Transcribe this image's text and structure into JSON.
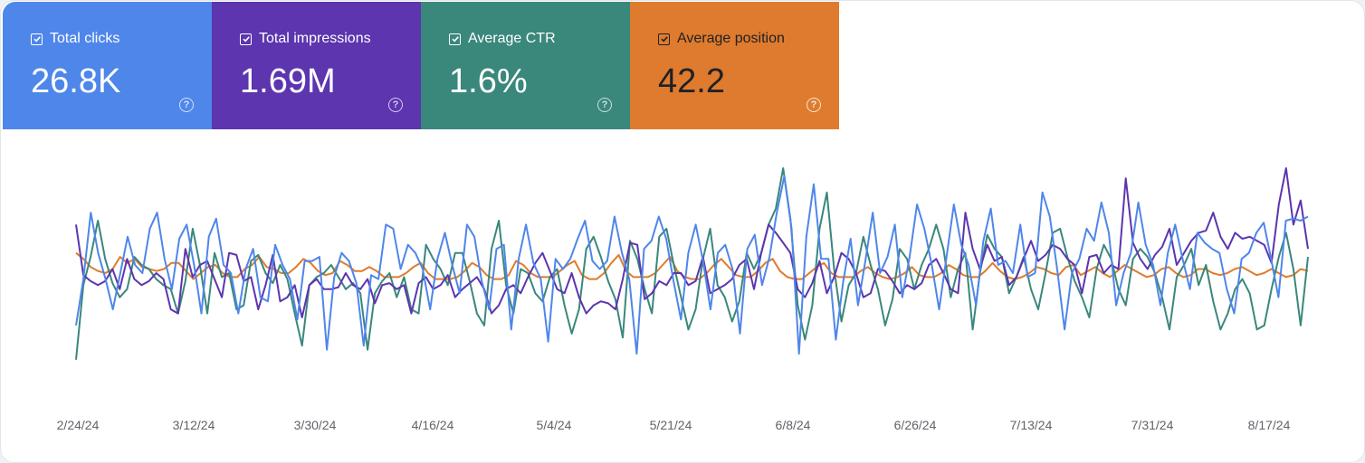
{
  "metrics": [
    {
      "label": "Total clicks",
      "value": "26.8K",
      "color": "#4f86ea",
      "checked": true
    },
    {
      "label": "Total impressions",
      "value": "1.69M",
      "color": "#5c35af",
      "checked": true
    },
    {
      "label": "Average CTR",
      "value": "1.6%",
      "color": "#3a877c",
      "checked": true
    },
    {
      "label": "Average position",
      "value": "42.2",
      "color": "#df7b2e",
      "checked": true
    }
  ],
  "chart_data": {
    "type": "line",
    "x_tick_labels": [
      "2/24/24",
      "3/12/24",
      "3/30/24",
      "4/16/24",
      "5/4/24",
      "5/21/24",
      "6/8/24",
      "6/26/24",
      "7/13/24",
      "7/31/24",
      "8/17/24"
    ],
    "x_range": [
      "2/24/24",
      "8/22/24"
    ],
    "y_axis_shown": false,
    "grid": false,
    "series": [
      {
        "name": "Total clicks",
        "color": "#4f86ea",
        "values": [
          0.22,
          0.45,
          0.78,
          0.58,
          0.45,
          0.3,
          0.48,
          0.66,
          0.52,
          0.48,
          0.7,
          0.78,
          0.55,
          0.4,
          0.65,
          0.72,
          0.52,
          0.28,
          0.66,
          0.75,
          0.52,
          0.48,
          0.28,
          0.5,
          0.6,
          0.36,
          0.34,
          0.62,
          0.52,
          0.45,
          0.25,
          0.54,
          0.54,
          0.56,
          0.1,
          0.46,
          0.58,
          0.54,
          0.43,
          0.12,
          0.47,
          0.45,
          0.72,
          0.7,
          0.5,
          0.62,
          0.58,
          0.5,
          0.3,
          0.55,
          0.68,
          0.52,
          0.38,
          0.72,
          0.66,
          0.44,
          0.3,
          0.6,
          0.62,
          0.2,
          0.55,
          0.72,
          0.53,
          0.45,
          0.14,
          0.55,
          0.5,
          0.55,
          0.65,
          0.74,
          0.54,
          0.5,
          0.54,
          0.76,
          0.58,
          0.45,
          0.08,
          0.6,
          0.64,
          0.76,
          0.65,
          0.44,
          0.25,
          0.58,
          0.72,
          0.54,
          0.3,
          0.58,
          0.62,
          0.5,
          0.18,
          0.6,
          0.67,
          0.42,
          0.56,
          0.78,
          0.96,
          0.7,
          0.08,
          0.66,
          0.92,
          0.55,
          0.55,
          0.15,
          0.44,
          0.65,
          0.32,
          0.54,
          0.78,
          0.48,
          0.56,
          0.72,
          0.36,
          0.56,
          0.82,
          0.7,
          0.52,
          0.3,
          0.56,
          0.82,
          0.62,
          0.52,
          0.32,
          0.64,
          0.8,
          0.52,
          0.54,
          0.48,
          0.72,
          0.46,
          0.48,
          0.88,
          0.76,
          0.5,
          0.2,
          0.48,
          0.55,
          0.7,
          0.64,
          0.83,
          0.68,
          0.32,
          0.48,
          0.58,
          0.83,
          0.62,
          0.52,
          0.32,
          0.58,
          0.72,
          0.55,
          0.4,
          0.68,
          0.63,
          0.6,
          0.58,
          0.4,
          0.28,
          0.55,
          0.58,
          0.68,
          0.73,
          0.55,
          0.36,
          0.74,
          0.75,
          0.74,
          0.76
        ]
      },
      {
        "name": "Total impressions",
        "color": "#5c35af",
        "values": [
          0.72,
          0.47,
          0.44,
          0.42,
          0.44,
          0.5,
          0.4,
          0.55,
          0.45,
          0.42,
          0.44,
          0.48,
          0.45,
          0.3,
          0.28,
          0.6,
          0.46,
          0.52,
          0.54,
          0.45,
          0.36,
          0.58,
          0.57,
          0.44,
          0.46,
          0.3,
          0.42,
          0.57,
          0.34,
          0.36,
          0.42,
          0.26,
          0.42,
          0.45,
          0.4,
          0.4,
          0.41,
          0.48,
          0.42,
          0.4,
          0.45,
          0.33,
          0.42,
          0.43,
          0.4,
          0.42,
          0.28,
          0.43,
          0.46,
          0.4,
          0.42,
          0.47,
          0.36,
          0.4,
          0.43,
          0.46,
          0.4,
          0.28,
          0.32,
          0.4,
          0.42,
          0.38,
          0.46,
          0.53,
          0.58,
          0.49,
          0.4,
          0.38,
          0.48,
          0.36,
          0.28,
          0.32,
          0.34,
          0.33,
          0.3,
          0.45,
          0.63,
          0.62,
          0.35,
          0.38,
          0.44,
          0.42,
          0.48,
          0.48,
          0.42,
          0.44,
          0.56,
          0.38,
          0.4,
          0.42,
          0.45,
          0.52,
          0.55,
          0.4,
          0.58,
          0.72,
          0.68,
          0.63,
          0.58,
          0.4,
          0.36,
          0.43,
          0.54,
          0.38,
          0.46,
          0.58,
          0.55,
          0.48,
          0.36,
          0.38,
          0.5,
          0.49,
          0.44,
          0.38,
          0.42,
          0.4,
          0.43,
          0.52,
          0.55,
          0.48,
          0.4,
          0.38,
          0.78,
          0.6,
          0.5,
          0.62,
          0.54,
          0.56,
          0.42,
          0.46,
          0.55,
          0.64,
          0.54,
          0.57,
          0.62,
          0.6,
          0.55,
          0.52,
          0.38,
          0.56,
          0.57,
          0.48,
          0.52,
          0.5,
          0.95,
          0.63,
          0.55,
          0.5,
          0.57,
          0.61,
          0.7,
          0.52,
          0.58,
          0.64,
          0.68,
          0.69,
          0.78,
          0.66,
          0.6,
          0.68,
          0.65,
          0.66,
          0.64,
          0.62,
          0.53,
          0.82,
          1.0,
          0.72,
          0.84,
          0.6
        ]
      },
      {
        "name": "Average CTR",
        "color": "#3a877c",
        "values": [
          0.05,
          0.42,
          0.56,
          0.74,
          0.55,
          0.43,
          0.36,
          0.4,
          0.56,
          0.52,
          0.5,
          0.45,
          0.42,
          0.4,
          0.28,
          0.44,
          0.7,
          0.52,
          0.28,
          0.58,
          0.46,
          0.48,
          0.3,
          0.32,
          0.54,
          0.57,
          0.48,
          0.43,
          0.52,
          0.45,
          0.28,
          0.12,
          0.42,
          0.46,
          0.48,
          0.52,
          0.46,
          0.4,
          0.43,
          0.38,
          0.1,
          0.38,
          0.44,
          0.48,
          0.36,
          0.46,
          0.3,
          0.28,
          0.62,
          0.55,
          0.5,
          0.42,
          0.58,
          0.58,
          0.44,
          0.28,
          0.22,
          0.6,
          0.74,
          0.42,
          0.28,
          0.5,
          0.48,
          0.38,
          0.34,
          0.46,
          0.5,
          0.32,
          0.18,
          0.3,
          0.6,
          0.66,
          0.56,
          0.44,
          0.35,
          0.16,
          0.64,
          0.55,
          0.4,
          0.28,
          0.66,
          0.7,
          0.52,
          0.36,
          0.2,
          0.3,
          0.55,
          0.7,
          0.42,
          0.36,
          0.24,
          0.34,
          0.58,
          0.5,
          0.58,
          0.72,
          0.8,
          1.0,
          0.75,
          0.32,
          0.15,
          0.32,
          0.7,
          0.88,
          0.5,
          0.24,
          0.42,
          0.48,
          0.66,
          0.52,
          0.4,
          0.22,
          0.35,
          0.6,
          0.55,
          0.4,
          0.52,
          0.6,
          0.72,
          0.6,
          0.36,
          0.5,
          0.58,
          0.2,
          0.48,
          0.67,
          0.6,
          0.56,
          0.38,
          0.46,
          0.56,
          0.4,
          0.3,
          0.48,
          0.68,
          0.7,
          0.56,
          0.44,
          0.36,
          0.26,
          0.5,
          0.62,
          0.55,
          0.4,
          0.32,
          0.55,
          0.6,
          0.56,
          0.48,
          0.36,
          0.2,
          0.46,
          0.52,
          0.6,
          0.42,
          0.52,
          0.34,
          0.2,
          0.28,
          0.4,
          0.45,
          0.38,
          0.2,
          0.22,
          0.4,
          0.56,
          0.68,
          0.5,
          0.22,
          0.56
        ]
      },
      {
        "name": "Average position",
        "color": "#df7b2e",
        "values": [
          0.58,
          0.55,
          0.51,
          0.49,
          0.48,
          0.5,
          0.56,
          0.53,
          0.55,
          0.51,
          0.5,
          0.49,
          0.5,
          0.53,
          0.53,
          0.49,
          0.45,
          0.48,
          0.51,
          0.52,
          0.48,
          0.46,
          0.46,
          0.5,
          0.52,
          0.56,
          0.51,
          0.5,
          0.48,
          0.48,
          0.51,
          0.55,
          0.53,
          0.49,
          0.47,
          0.48,
          0.54,
          0.52,
          0.49,
          0.49,
          0.51,
          0.49,
          0.46,
          0.46,
          0.46,
          0.48,
          0.51,
          0.53,
          0.48,
          0.45,
          0.45,
          0.45,
          0.46,
          0.49,
          0.53,
          0.51,
          0.47,
          0.45,
          0.45,
          0.47,
          0.54,
          0.52,
          0.48,
          0.46,
          0.46,
          0.46,
          0.49,
          0.52,
          0.54,
          0.47,
          0.45,
          0.45,
          0.48,
          0.53,
          0.57,
          0.49,
          0.46,
          0.46,
          0.46,
          0.48,
          0.52,
          0.56,
          0.49,
          0.46,
          0.45,
          0.45,
          0.48,
          0.52,
          0.55,
          0.51,
          0.47,
          0.46,
          0.46,
          0.49,
          0.53,
          0.55,
          0.49,
          0.46,
          0.45,
          0.45,
          0.48,
          0.51,
          0.53,
          0.48,
          0.46,
          0.46,
          0.46,
          0.49,
          0.51,
          0.48,
          0.46,
          0.45,
          0.46,
          0.48,
          0.51,
          0.47,
          0.46,
          0.46,
          0.48,
          0.52,
          0.5,
          0.47,
          0.46,
          0.46,
          0.49,
          0.53,
          0.49,
          0.46,
          0.45,
          0.46,
          0.48,
          0.51,
          0.5,
          0.48,
          0.47,
          0.51,
          0.52,
          0.47,
          0.49,
          0.51,
          0.48,
          0.46,
          0.49,
          0.52,
          0.5,
          0.48,
          0.46,
          0.47,
          0.5,
          0.51,
          0.48,
          0.46,
          0.47,
          0.5,
          0.5,
          0.48,
          0.47,
          0.48,
          0.5,
          0.51,
          0.49,
          0.47,
          0.48,
          0.5,
          0.48,
          0.46,
          0.47,
          0.5,
          0.49
        ]
      }
    ]
  }
}
